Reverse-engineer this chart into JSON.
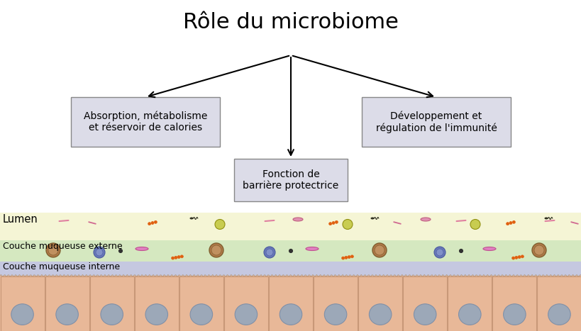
{
  "title": "Rôle du microbiome",
  "title_fontsize": 22,
  "box_left_text": "Absorption, métabolisme\net réservoir de calories",
  "box_right_text": "Développement et\nrégulation de l'immunité",
  "box_center_text": "Fonction de\nbarrière protectrice",
  "box_color": "#dcdce8",
  "box_edge_color": "#888888",
  "lumen_color": "#f5f5d5",
  "outer_mucosa_color": "#d5e8c0",
  "inner_mucosa_color": "#c5c8e0",
  "epithelium_color": "#e8b898",
  "cell_nucleus_color": "#9ca8b8",
  "cell_border_color": "#c89878",
  "label_lumen": "Lumen",
  "label_outer": "Couche muqueuse externe",
  "label_inner": "Couche muqueuse interne",
  "label_fontsize": 9,
  "bg_color": "#ffffff"
}
